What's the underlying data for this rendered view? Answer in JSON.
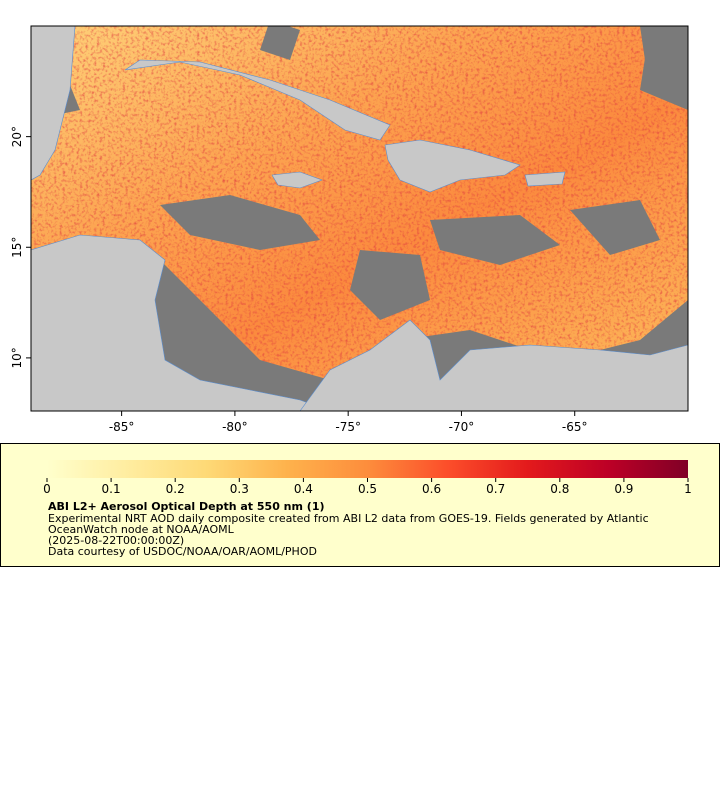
{
  "map": {
    "lon_range": [
      -89,
      -60
    ],
    "lat_range": [
      25,
      7.6
    ],
    "lon_ticks": [
      {
        "value": -85,
        "label": "-85°"
      },
      {
        "value": -80,
        "label": "-80°"
      },
      {
        "value": -75,
        "label": "-75°"
      },
      {
        "value": -70,
        "label": "-70°"
      },
      {
        "value": -65,
        "label": "-65°"
      }
    ],
    "lat_ticks": [
      {
        "value": 20,
        "label": "20°"
      },
      {
        "value": 15,
        "label": "15°"
      },
      {
        "value": 10,
        "label": "10°"
      }
    ]
  },
  "legend": {
    "colorbar": {
      "range": [
        0,
        1
      ],
      "ticks": [
        0,
        0.1,
        0.2,
        0.3,
        0.4,
        0.5,
        0.6,
        0.7,
        0.8,
        0.9,
        1
      ]
    },
    "title": "ABI L2+ Aerosol Optical Depth at 550 nm (1)",
    "lines": [
      "Experimental NRT AOD daily composite created from ABI L2 data from GOES-19. Fields generated by Atlantic",
      "OceanWatch node at NOAA/AOML",
      "(2025-08-22T00:00:00Z)",
      "Data courtesy of USDOC/NOAA/OAR/AOML/PHOD"
    ]
  }
}
